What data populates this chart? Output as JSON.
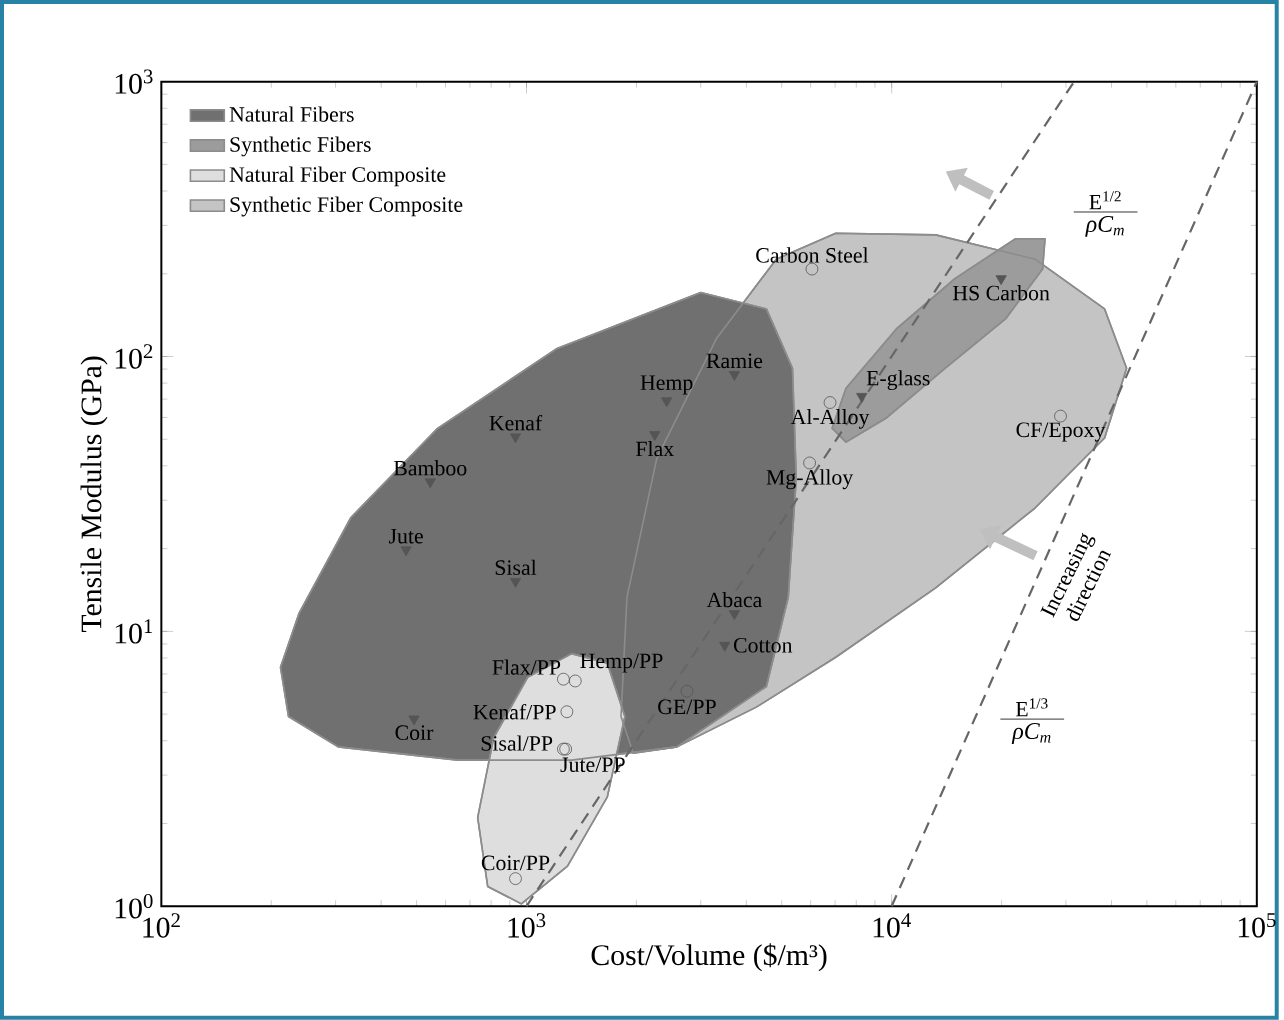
{
  "chart_data": {
    "type": "scatter",
    "xlabel": "Cost/Volume ($/m³)",
    "ylabel": "Tensile Modulus (GPa)",
    "log": "xy",
    "xlim": [
      100,
      100000
    ],
    "ylim": [
      1,
      1000
    ],
    "xticks": [
      {
        "value": 100,
        "label": "10$^{2}$"
      },
      {
        "value": 1000,
        "label": "10$^{3}$"
      },
      {
        "value": 10000,
        "label": "10$^{4}$"
      },
      {
        "value": 100000,
        "label": "10$^{5}$"
      }
    ],
    "yticks": [
      {
        "value": 1,
        "label": "10$^{0}$"
      },
      {
        "value": 10,
        "label": "10$^{1}$"
      },
      {
        "value": 100,
        "label": "10$^{2}$"
      },
      {
        "value": 1000,
        "label": "10$^{3}$"
      }
    ],
    "grid": false,
    "legend": "top left",
    "series": [
      {
        "name": "Natural Fibers",
        "type": "area",
        "color": "#707070",
        "x": [
          212,
          238,
          330,
          571,
          1213,
          3000,
          4540,
          5350,
          5480,
          5210,
          4540,
          2580,
          1330,
          649,
          305,
          223
        ],
        "values": [
          7.4,
          11.6,
          25.9,
          54.8,
          107,
          171,
          149,
          90.6,
          36.1,
          13.3,
          6.3,
          3.8,
          3.4,
          3.4,
          3.8,
          4.9
        ]
      },
      {
        "name": "Synthetic Fibers",
        "type": "area",
        "color": "#9c9c9c",
        "x": [
          6870,
          7500,
          10300,
          14900,
          21800,
          26300,
          25900,
          20500,
          14000,
          9640,
          7500
        ],
        "values": [
          54.8,
          76.6,
          126,
          192,
          268,
          268,
          208,
          137,
          90.6,
          59.6,
          48.8
        ]
      },
      {
        "name": "Natural Fiber Composite",
        "type": "area",
        "color": "#dedede",
        "x": [
          1330,
          1665,
          1860,
          1665,
          1295,
          968,
          783,
          735,
          813,
          1007
        ],
        "values": [
          8.3,
          7.65,
          4.9,
          2.5,
          1.4,
          1.02,
          1.18,
          2.1,
          4.1,
          6.8
        ]
      },
      {
        "name": "Synthetic Fiber Composite",
        "type": "area",
        "color": "#c4c4c4",
        "x": [
          1815,
          1884,
          2275,
          3310,
          4830,
          7030,
          13200,
          24700,
          38300,
          44000,
          38300,
          24700,
          13200,
          7030,
          4260,
          2580,
          1960
        ],
        "values": [
          4.9,
          13.3,
          42.7,
          116,
          226,
          281,
          277,
          226,
          149,
          90.6,
          50.5,
          28.1,
          14.4,
          8.05,
          5.3,
          3.8,
          3.6
        ]
      },
      {
        "marker": "triangle",
        "color": "#555555",
        "x": [
          545,
          468,
          933,
          933,
          492,
          2420,
          2245,
          3710,
          3710,
          3490,
          8280,
          19950
        ],
        "values": [
          35,
          19.8,
          51,
          15.2,
          4.8,
          69,
          52,
          86,
          11.6,
          8.9,
          71.6,
          192
        ]
      },
      {
        "marker": "circle",
        "color": "#555555",
        "x": [
          6050,
          6780,
          5960,
          29000,
          2750,
          1262,
          1360,
          1290,
          1262,
          1280,
          933
        ],
        "values": [
          208,
          68,
          41,
          60.7,
          6.06,
          6.7,
          6.6,
          5.1,
          3.73,
          3.73,
          1.26
        ]
      },
      {
        "type": "line",
        "line_style": "dashed",
        "color": "#666666",
        "x": [
          1000,
          31600
        ],
        "values": [
          1,
          1000
        ]
      },
      {
        "type": "line",
        "line_style": "dashed",
        "color": "#666666",
        "x": [
          10000,
          100000
        ],
        "values": [
          1,
          1000
        ]
      }
    ],
    "annotations": [
      {
        "text": "Bamboo",
        "x": 545,
        "y": 35
      },
      {
        "text": "Jute",
        "x": 468,
        "y": 19.8
      },
      {
        "text": "Kenaf",
        "x": 933,
        "y": 51
      },
      {
        "text": "Sisal",
        "x": 933,
        "y": 15.2
      },
      {
        "text": "Coir",
        "x": 492,
        "y": 4.8
      },
      {
        "text": "Hemp",
        "x": 2420,
        "y": 69
      },
      {
        "text": "Flax",
        "x": 2245,
        "y": 52
      },
      {
        "text": "Ramie",
        "x": 3710,
        "y": 86
      },
      {
        "text": "Abaca",
        "x": 3710,
        "y": 11.6
      },
      {
        "text": "Cotton",
        "x": 3490,
        "y": 8.9
      },
      {
        "text": "E-glass",
        "x": 8280,
        "y": 71.6
      },
      {
        "text": "HS Carbon",
        "x": 19950,
        "y": 192
      },
      {
        "text": "Carbon Steel",
        "x": 6050,
        "y": 208
      },
      {
        "text": "Al-Alloy",
        "x": 6780,
        "y": 68
      },
      {
        "text": "Mg-Alloy",
        "x": 5960,
        "y": 41
      },
      {
        "text": "CF/Epoxy",
        "x": 29000,
        "y": 60.7
      },
      {
        "text": "GE/PP",
        "x": 2750,
        "y": 6.06
      },
      {
        "text": "Flax/PP",
        "x": 1262,
        "y": 6.7
      },
      {
        "text": "Hemp/PP",
        "x": 1360,
        "y": 6.6
      },
      {
        "text": "Kenaf/PP",
        "x": 1290,
        "y": 5.1
      },
      {
        "text": "Sisal/PP",
        "x": 1262,
        "y": 3.73
      },
      {
        "text": "Jute/PP",
        "x": 1280,
        "y": 3.73
      },
      {
        "text": "Coir/PP",
        "x": 933,
        "y": 1.26
      },
      "E$^{1/2}$",
      "ρC$_{m}$",
      "E$^{1/3}$",
      "ρC$_{m}$",
      "Increasing direction"
    ]
  }
}
